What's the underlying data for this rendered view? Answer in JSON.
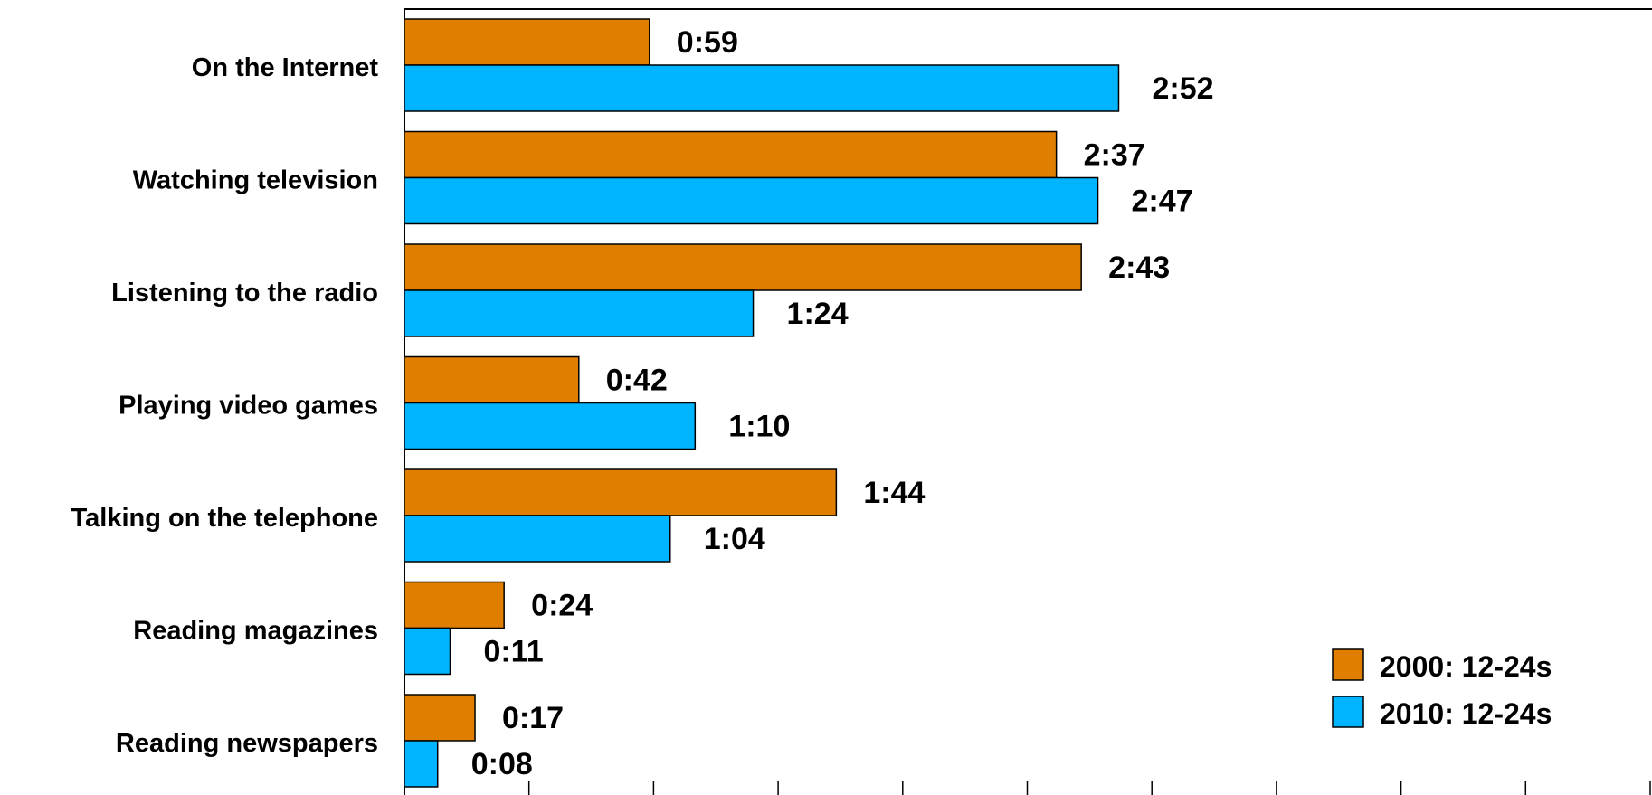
{
  "chart_data": {
    "type": "bar",
    "orientation": "horizontal",
    "categories": [
      "On the Internet",
      "Watching television",
      "Listening to the radio",
      "Playing video games",
      "Talking on the telephone",
      "Reading magazines",
      "Reading newspapers"
    ],
    "series": [
      {
        "name": "2000: 12-24s",
        "color": "#E07E00",
        "values": [
          59,
          157,
          163,
          42,
          104,
          24,
          17
        ],
        "labels": [
          "0:59",
          "2:37",
          "2:43",
          "0:42",
          "1:44",
          "0:24",
          "0:17"
        ]
      },
      {
        "name": "2010: 12-24s",
        "color": "#00B4FF",
        "values": [
          172,
          167,
          84,
          70,
          64,
          11,
          8
        ],
        "labels": [
          "2:52",
          "2:47",
          "1:24",
          "1:10",
          "1:04",
          "0:11",
          "0:08"
        ]
      }
    ],
    "value_unit": "minutes",
    "xlim": [
      0,
      300
    ],
    "x_tick_interval": 30,
    "grid": false,
    "legend_position": "bottom-right"
  }
}
